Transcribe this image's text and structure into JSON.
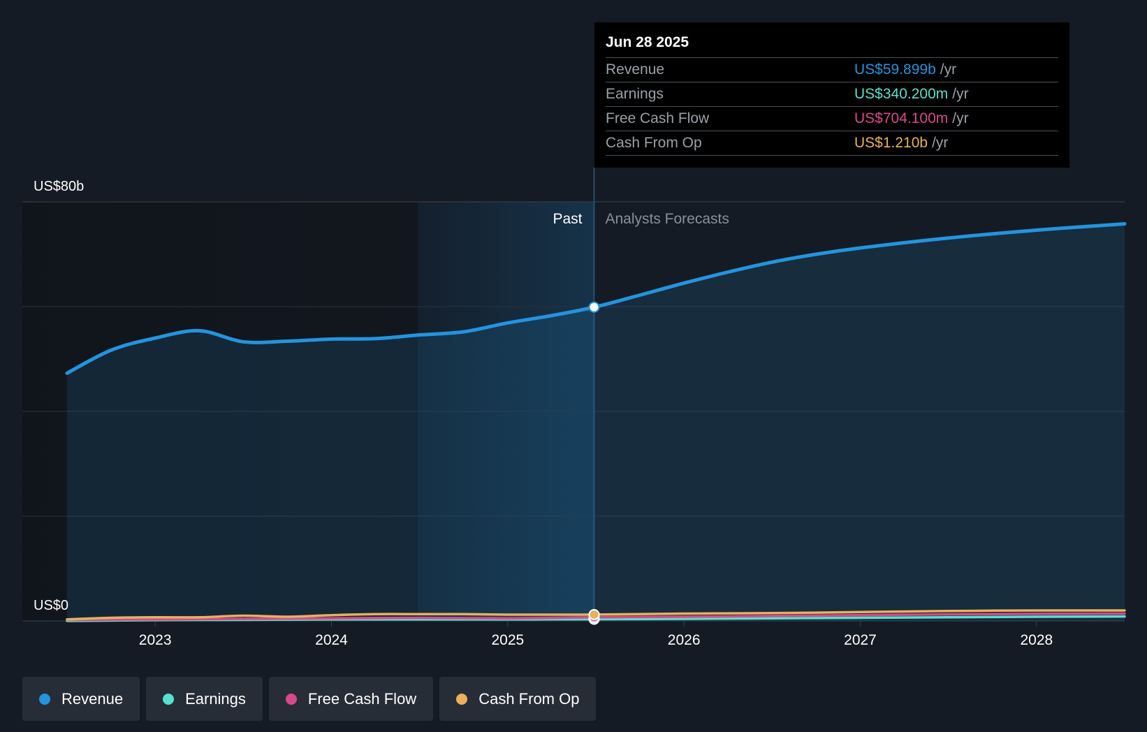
{
  "chart_data": {
    "type": "area",
    "y_axis": {
      "min": 0,
      "max": 80,
      "unit": "US$ billions",
      "top_label": "US$80b",
      "bottom_label": "US$0",
      "gridlines": [
        0,
        20,
        40,
        60,
        80
      ]
    },
    "x_axis": {
      "min": 2022.25,
      "max": 2028.5,
      "ticks": [
        {
          "value": 2023,
          "label": "2023"
        },
        {
          "value": 2024,
          "label": "2024"
        },
        {
          "value": 2025,
          "label": "2025"
        },
        {
          "value": 2026,
          "label": "2026"
        },
        {
          "value": 2027,
          "label": "2027"
        },
        {
          "value": 2028,
          "label": "2028"
        }
      ]
    },
    "divider": {
      "x": 2025.49,
      "past_label": "Past",
      "forecast_label": "Analysts Forecasts"
    },
    "highlight_band": {
      "from": 2024.49,
      "to": 2025.49
    },
    "series": [
      {
        "name": "Revenue",
        "color": "#2394df",
        "filled": true,
        "points": [
          [
            2022.5,
            47.3
          ],
          [
            2022.75,
            51.7
          ],
          [
            2023.0,
            54.0
          ],
          [
            2023.25,
            55.4
          ],
          [
            2023.5,
            53.3
          ],
          [
            2023.75,
            53.4
          ],
          [
            2024.0,
            53.8
          ],
          [
            2024.25,
            53.9
          ],
          [
            2024.5,
            54.6
          ],
          [
            2024.75,
            55.2
          ],
          [
            2025.0,
            56.9
          ],
          [
            2025.25,
            58.3
          ],
          [
            2025.49,
            59.899
          ],
          [
            2025.75,
            62.2
          ],
          [
            2026.0,
            64.5
          ],
          [
            2026.25,
            66.6
          ],
          [
            2026.5,
            68.5
          ],
          [
            2026.75,
            70.0
          ],
          [
            2027.0,
            71.2
          ],
          [
            2027.5,
            73.1
          ],
          [
            2028.0,
            74.6
          ],
          [
            2028.5,
            75.8
          ]
        ]
      },
      {
        "name": "Earnings",
        "color": "#56e0cf",
        "filled": false,
        "points": [
          [
            2022.5,
            0.0
          ],
          [
            2023.0,
            0.15
          ],
          [
            2023.5,
            0.2
          ],
          [
            2024.0,
            0.3
          ],
          [
            2024.5,
            0.3
          ],
          [
            2025.0,
            0.3
          ],
          [
            2025.49,
            0.34
          ],
          [
            2026.0,
            0.4
          ],
          [
            2026.5,
            0.5
          ],
          [
            2027.0,
            0.6
          ],
          [
            2027.5,
            0.7
          ],
          [
            2028.0,
            0.8
          ],
          [
            2028.5,
            0.85
          ]
        ]
      },
      {
        "name": "Free Cash Flow",
        "color": "#d8498c",
        "filled": false,
        "points": [
          [
            2022.5,
            0.2
          ],
          [
            2023.0,
            0.3
          ],
          [
            2023.5,
            0.4
          ],
          [
            2024.0,
            0.5
          ],
          [
            2024.5,
            0.6
          ],
          [
            2025.0,
            0.5
          ],
          [
            2025.49,
            0.704
          ],
          [
            2026.0,
            0.8
          ],
          [
            2026.5,
            0.95
          ],
          [
            2027.0,
            1.1
          ],
          [
            2027.5,
            1.25
          ],
          [
            2028.0,
            1.35
          ],
          [
            2028.5,
            1.4
          ]
        ]
      },
      {
        "name": "Cash From Op",
        "color": "#e8b15a",
        "filled": false,
        "points": [
          [
            2022.5,
            0.3
          ],
          [
            2022.75,
            0.6
          ],
          [
            2023.0,
            0.7
          ],
          [
            2023.25,
            0.7
          ],
          [
            2023.5,
            1.0
          ],
          [
            2023.75,
            0.8
          ],
          [
            2024.0,
            1.1
          ],
          [
            2024.25,
            1.3
          ],
          [
            2024.5,
            1.3
          ],
          [
            2024.75,
            1.3
          ],
          [
            2025.0,
            1.2
          ],
          [
            2025.25,
            1.2
          ],
          [
            2025.49,
            1.21
          ],
          [
            2026.0,
            1.4
          ],
          [
            2026.5,
            1.5
          ],
          [
            2027.0,
            1.7
          ],
          [
            2027.5,
            1.9
          ],
          [
            2028.0,
            2.0
          ],
          [
            2028.5,
            2.0
          ]
        ]
      }
    ]
  },
  "tooltip": {
    "date": "Jun 28 2025",
    "rows": [
      {
        "label": "Revenue",
        "value": "US$59.899b",
        "unit": "/yr",
        "color": "#2394df"
      },
      {
        "label": "Earnings",
        "value": "US$340.200m",
        "unit": "/yr",
        "color": "#56e0cf"
      },
      {
        "label": "Free Cash Flow",
        "value": "US$704.100m",
        "unit": "/yr",
        "color": "#d8498c"
      },
      {
        "label": "Cash From Op",
        "value": "US$1.210b",
        "unit": "/yr",
        "color": "#e8b15a"
      }
    ]
  },
  "legend": [
    {
      "label": "Revenue",
      "color": "#2394df"
    },
    {
      "label": "Earnings",
      "color": "#56e0cf"
    },
    {
      "label": "Free Cash Flow",
      "color": "#d8498c"
    },
    {
      "label": "Cash From Op",
      "color": "#e8b15a"
    }
  ]
}
